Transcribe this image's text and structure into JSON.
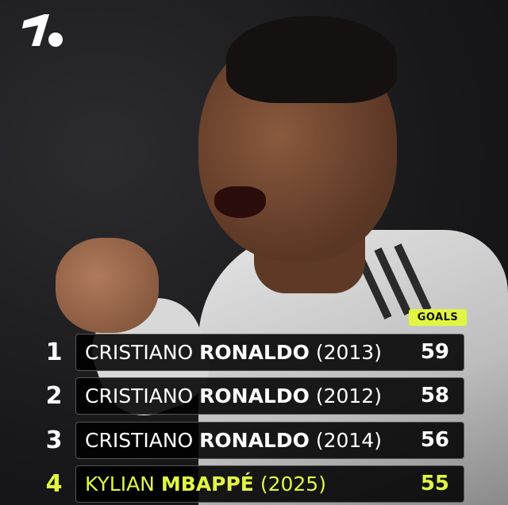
{
  "brand": {
    "logo": "1.",
    "accent": "#e2f542"
  },
  "table": {
    "column_label": "GOALS",
    "rows": [
      {
        "rank": "1",
        "first": "CRISTIANO",
        "last": "RONALDO",
        "year": "(2013)",
        "goals": "59",
        "highlight": false
      },
      {
        "rank": "2",
        "first": "CRISTIANO",
        "last": "RONALDO",
        "year": "(2012)",
        "goals": "58",
        "highlight": false
      },
      {
        "rank": "3",
        "first": "CRISTIANO",
        "last": "RONALDO",
        "year": "(2014)",
        "goals": "56",
        "highlight": false
      },
      {
        "rank": "4",
        "first": "KYLIAN",
        "last": "MBAPPÉ",
        "year": "(2025)",
        "goals": "55",
        "highlight": true
      }
    ]
  }
}
